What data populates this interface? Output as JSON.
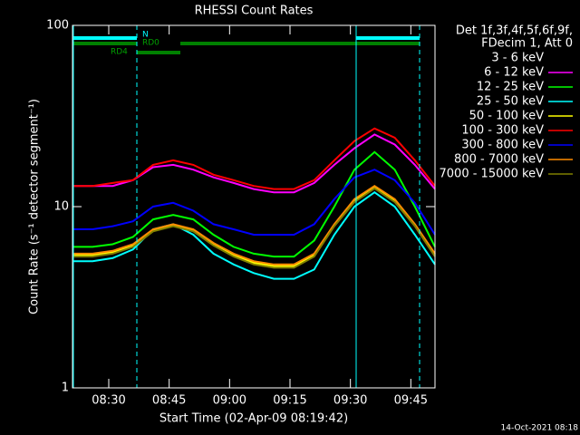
{
  "chart_data": {
    "type": "line",
    "title": "RHESSI Count Rates",
    "ylabel": "Count Rate (s⁻¹ detector segment⁻¹)",
    "xlabel": "Start Time (02-Apr-09 08:19:42)",
    "legend_title": [
      "Det 1f,3f,4f,5f,6f,9f,",
      "FDecim 1, Att 0"
    ],
    "footer": "14-Oct-2021 08:18",
    "annotations": [
      "N",
      "RD0",
      "RD4"
    ],
    "log_y": true,
    "ylim": [
      1,
      100
    ],
    "yticks": [
      1,
      10,
      100
    ],
    "xlim": [
      "08:21",
      "09:51"
    ],
    "xticks": [
      "08:30",
      "08:45",
      "09:00",
      "09:15",
      "09:30",
      "09:45"
    ],
    "x": [
      "08:21",
      "08:26",
      "08:31",
      "08:36",
      "08:41",
      "08:46",
      "08:51",
      "08:56",
      "09:01",
      "09:06",
      "09:11",
      "09:16",
      "09:21",
      "09:26",
      "09:31",
      "09:36",
      "09:41",
      "09:46",
      "09:51"
    ],
    "series": [
      {
        "name": "3 - 6 keV",
        "color": "#000000",
        "values": [
          7.5,
          7.5,
          7.8,
          8.5,
          10,
          10.5,
          9.5,
          8,
          7.5,
          7,
          7,
          7,
          8,
          11,
          14,
          15,
          13,
          10,
          7
        ]
      },
      {
        "name": "6 - 12 keV",
        "color": "#ff00ff",
        "values": [
          13,
          13,
          13,
          14,
          16.5,
          17,
          16,
          14.5,
          13.5,
          12.5,
          12,
          12,
          13.5,
          17,
          21,
          25,
          22,
          17,
          12.5
        ]
      },
      {
        "name": "12 - 25 keV",
        "color": "#00ff00",
        "values": [
          6,
          6,
          6.2,
          6.8,
          8.5,
          9,
          8.5,
          7,
          6,
          5.5,
          5.3,
          5.3,
          6.5,
          10,
          16,
          20,
          16,
          10,
          6
        ]
      },
      {
        "name": "25 - 50 keV",
        "color": "#00ffff",
        "values": [
          5,
          5,
          5.2,
          5.8,
          7.5,
          8,
          7,
          5.5,
          4.8,
          4.3,
          4,
          4,
          4.5,
          7,
          10,
          12,
          10,
          7,
          4.8
        ]
      },
      {
        "name": "50 - 100 keV",
        "color": "#ffff00",
        "values": [
          5.4,
          5.4,
          5.6,
          6.1,
          7.4,
          7.9,
          7.4,
          6.2,
          5.4,
          4.9,
          4.7,
          4.7,
          5.4,
          7.9,
          10.8,
          12.8,
          10.8,
          7.9,
          5.4
        ]
      },
      {
        "name": "100 - 300 keV",
        "color": "#ff0000",
        "values": [
          13,
          13,
          13.5,
          14,
          17,
          18,
          17,
          15,
          14,
          13,
          12.5,
          12.5,
          14,
          18,
          23,
          27,
          24,
          18,
          13
        ]
      },
      {
        "name": "300 - 800 keV",
        "color": "#0000ff",
        "values": [
          7.5,
          7.5,
          7.8,
          8.3,
          10,
          10.5,
          9.5,
          8,
          7.5,
          7,
          7,
          7,
          8,
          11,
          14.5,
          16,
          14,
          10.5,
          7
        ]
      },
      {
        "name": "800 - 7000 keV",
        "color": "#ff8c00",
        "values": [
          5.5,
          5.5,
          5.7,
          6.2,
          7.5,
          8,
          7.5,
          6.3,
          5.5,
          5,
          4.8,
          4.8,
          5.5,
          8,
          11,
          13,
          11,
          8,
          5.5
        ]
      },
      {
        "name": "7000 - 15000 keV",
        "color": "#808000",
        "values": [
          5.3,
          5.3,
          5.5,
          6,
          7.3,
          7.8,
          7.3,
          6.1,
          5.3,
          4.8,
          4.6,
          4.6,
          5.3,
          7.8,
          10.6,
          12.6,
          10.6,
          7.8,
          5.3
        ]
      }
    ]
  }
}
